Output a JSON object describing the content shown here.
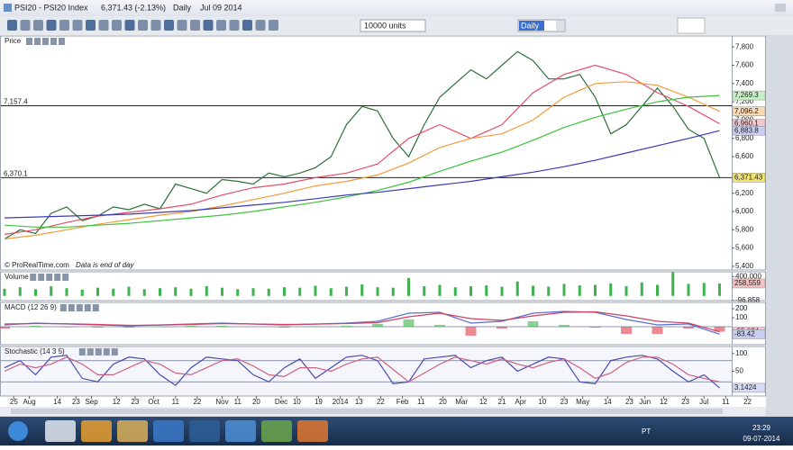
{
  "window": {
    "title": "PSI20 - PSI20 Index",
    "quote": "6,371.43 (-2.13%)",
    "period": "Daily",
    "date": "Jul 09 2014"
  },
  "toolbar": {
    "units": "10000 units",
    "interval": "Daily"
  },
  "chart_data": [
    {
      "type": "line",
      "title": "Price",
      "annotation": "© ProRealTime.com",
      "note": "Data is end of day",
      "xlim": [
        0,
        240
      ],
      "ylim": [
        5360,
        7920
      ],
      "yticks": [
        {
          "value": 5400,
          "label": "5,400"
        },
        {
          "value": 5600,
          "label": "5,600"
        },
        {
          "value": 5800,
          "label": "5,800"
        },
        {
          "value": 6000,
          "label": "6,000"
        },
        {
          "value": 6200,
          "label": "6,200"
        },
        {
          "value": 6600,
          "label": "6,600"
        },
        {
          "value": 6800,
          "label": "6,800"
        },
        {
          "value": 7000,
          "label": "7,000"
        },
        {
          "value": 7200,
          "label": "7,200"
        },
        {
          "value": 7400,
          "label": "7,400"
        },
        {
          "value": 7600,
          "label": "7,600"
        },
        {
          "value": 7800,
          "label": "7,800"
        }
      ],
      "levels": [
        {
          "value": 7157.4,
          "label": "7,157.4"
        },
        {
          "value": 6370.1,
          "label": "6,370.1"
        }
      ],
      "series": [
        {
          "color": "#2f6f3a",
          "badge": "#f2e36b",
          "x": [
            0,
            5,
            10,
            15,
            20,
            25,
            30,
            35,
            40,
            45,
            50,
            55,
            60,
            65,
            70,
            75,
            80,
            85,
            90,
            95,
            100,
            105,
            110,
            115,
            120,
            125,
            130,
            135,
            140,
            145,
            150,
            155,
            160,
            165,
            170,
            175,
            180,
            185,
            190,
            195,
            200,
            205,
            210,
            215,
            220,
            225,
            230
          ],
          "values": [
            5700,
            5800,
            5760,
            5980,
            6050,
            5900,
            5950,
            6050,
            6020,
            6080,
            6030,
            6300,
            6250,
            6200,
            6350,
            6330,
            6300,
            6420,
            6380,
            6420,
            6480,
            6600,
            6950,
            7150,
            7100,
            6800,
            6600,
            6950,
            7250,
            7400,
            7550,
            7450,
            7600,
            7750,
            7650,
            7450,
            7450,
            7500,
            7250,
            6850,
            6950,
            7150,
            7350,
            7150,
            6900,
            6800,
            6371.43
          ],
          "last_label": "6,371.43"
        },
        {
          "color": "#e0506a",
          "badge": "#f6c6cf",
          "x": [
            0,
            10,
            20,
            30,
            40,
            50,
            60,
            70,
            80,
            90,
            100,
            110,
            120,
            130,
            140,
            150,
            160,
            170,
            180,
            190,
            200,
            210,
            220,
            230
          ],
          "values": [
            5750,
            5800,
            5880,
            5950,
            5990,
            6030,
            6080,
            6180,
            6260,
            6300,
            6370,
            6420,
            6520,
            6800,
            6950,
            6800,
            6950,
            7300,
            7500,
            7600,
            7500,
            7300,
            7150,
            6960.1
          ],
          "last_label": "6,960.1"
        },
        {
          "color": "#f39a3a",
          "badge": "#fbd8b0",
          "x": [
            0,
            10,
            20,
            30,
            40,
            50,
            60,
            70,
            80,
            90,
            100,
            110,
            120,
            130,
            140,
            150,
            160,
            170,
            180,
            190,
            200,
            210,
            220,
            230
          ],
          "values": [
            5700,
            5740,
            5800,
            5860,
            5910,
            5960,
            6000,
            6060,
            6130,
            6200,
            6280,
            6330,
            6400,
            6530,
            6700,
            6800,
            6850,
            7000,
            7250,
            7400,
            7420,
            7380,
            7250,
            7096.2
          ],
          "last_label": "7,096.2"
        },
        {
          "color": "#3cc23c",
          "badge": "#c8f0c8",
          "x": [
            0,
            10,
            20,
            30,
            40,
            50,
            60,
            70,
            80,
            90,
            100,
            110,
            120,
            130,
            140,
            150,
            160,
            170,
            180,
            190,
            200,
            210,
            220,
            230
          ],
          "values": [
            5850,
            5830,
            5830,
            5850,
            5870,
            5900,
            5930,
            5960,
            6000,
            6050,
            6100,
            6160,
            6230,
            6320,
            6440,
            6550,
            6650,
            6780,
            6920,
            7030,
            7120,
            7200,
            7250,
            7269.3
          ],
          "last_label": "7,269.3"
        },
        {
          "color": "#3a3ab8",
          "badge": "#c8cdf2",
          "x": [
            0,
            10,
            20,
            30,
            40,
            50,
            60,
            70,
            80,
            90,
            100,
            110,
            120,
            130,
            140,
            150,
            160,
            170,
            180,
            190,
            200,
            210,
            220,
            230
          ],
          "values": [
            5930,
            5940,
            5950,
            5960,
            5970,
            5990,
            6010,
            6040,
            6070,
            6100,
            6140,
            6180,
            6210,
            6250,
            6290,
            6330,
            6380,
            6430,
            6490,
            6560,
            6640,
            6720,
            6800,
            6883.8
          ],
          "last_label": "6,883.8"
        }
      ]
    },
    {
      "type": "bar",
      "title": "Volume",
      "color": "#3cb44b",
      "xlim": [
        0,
        240
      ],
      "ylim": [
        -96858,
        500000
      ],
      "yticks": [
        {
          "value": 400000,
          "label": "400,000"
        },
        {
          "value": -96858,
          "label": "-96,858"
        }
      ],
      "x": [
        0,
        5,
        10,
        15,
        20,
        25,
        30,
        35,
        40,
        45,
        50,
        55,
        60,
        65,
        70,
        75,
        80,
        85,
        90,
        95,
        100,
        105,
        110,
        115,
        120,
        125,
        130,
        135,
        140,
        145,
        150,
        155,
        160,
        165,
        170,
        175,
        180,
        185,
        190,
        195,
        200,
        205,
        210,
        215,
        220,
        225,
        230
      ],
      "values": [
        150000,
        180000,
        140000,
        200000,
        160000,
        130000,
        170000,
        150000,
        190000,
        140000,
        160000,
        180000,
        150000,
        200000,
        170000,
        140000,
        160000,
        150000,
        180000,
        170000,
        210000,
        160000,
        190000,
        240000,
        180000,
        170000,
        370000,
        200000,
        230000,
        180000,
        200000,
        220000,
        190000,
        300000,
        210000,
        190000,
        250000,
        220000,
        230000,
        260000,
        200000,
        280000,
        230000,
        490000,
        250000,
        270000,
        258559
      ],
      "last_label": "258,559"
    },
    {
      "type": "macd",
      "title": "MACD (12 26 9)",
      "xlim": [
        0,
        240
      ],
      "ylim": [
        -200,
        270
      ],
      "yticks": [
        200,
        100
      ],
      "x": [
        0,
        10,
        20,
        30,
        40,
        50,
        60,
        70,
        80,
        90,
        100,
        110,
        120,
        130,
        140,
        150,
        160,
        170,
        180,
        190,
        200,
        210,
        220,
        230
      ],
      "series": [
        {
          "color": "#5a6fd0",
          "values": [
            20,
            40,
            30,
            20,
            10,
            20,
            30,
            40,
            30,
            20,
            30,
            40,
            60,
            150,
            160,
            40,
            60,
            150,
            170,
            160,
            80,
            20,
            30,
            -83.42
          ]
        },
        {
          "color": "#d04060",
          "values": [
            30,
            35,
            33,
            25,
            15,
            18,
            25,
            35,
            30,
            25,
            28,
            35,
            45,
            110,
            150,
            90,
            70,
            120,
            160,
            165,
            120,
            60,
            40,
            -55.634
          ]
        }
      ],
      "histogram": {
        "up": "#3cb44b",
        "down": "#e03a4a",
        "values": [
          -20,
          10,
          -6,
          -10,
          -10,
          4,
          10,
          10,
          0,
          -10,
          4,
          10,
          30,
          80,
          20,
          -100,
          -20,
          60,
          20,
          -10,
          -80,
          -80,
          -20,
          -56
        ]
      }
    },
    {
      "type": "line",
      "title": "Stochastic (14 3 5)",
      "xlim": [
        0,
        240
      ],
      "ylim": [
        -20,
        120
      ],
      "yticks": [
        100,
        50
      ],
      "levels": [
        80,
        20
      ],
      "xticks": [
        {
          "value": 3,
          "label": "25"
        },
        {
          "value": 8,
          "label": "Aug"
        },
        {
          "value": 17,
          "label": "14"
        },
        {
          "value": 23,
          "label": "23"
        },
        {
          "value": 28,
          "label": "Sep"
        },
        {
          "value": 36,
          "label": "12"
        },
        {
          "value": 42,
          "label": "23"
        },
        {
          "value": 48,
          "label": "Oct"
        },
        {
          "value": 55,
          "label": "11"
        },
        {
          "value": 62,
          "label": "22"
        },
        {
          "value": 70,
          "label": "Nov"
        },
        {
          "value": 75,
          "label": "11"
        },
        {
          "value": 81,
          "label": "20"
        },
        {
          "value": 89,
          "label": "Dec"
        },
        {
          "value": 94,
          "label": "10"
        },
        {
          "value": 101,
          "label": "19"
        },
        {
          "value": 108,
          "label": "2014"
        },
        {
          "value": 114,
          "label": "13"
        },
        {
          "value": 121,
          "label": "22"
        },
        {
          "value": 128,
          "label": "Feb"
        },
        {
          "value": 134,
          "label": "11"
        },
        {
          "value": 141,
          "label": "20"
        },
        {
          "value": 147,
          "label": "Mar"
        },
        {
          "value": 154,
          "label": "12"
        },
        {
          "value": 160,
          "label": "21"
        },
        {
          "value": 166,
          "label": "Apr"
        },
        {
          "value": 173,
          "label": "10"
        },
        {
          "value": 180,
          "label": "23"
        },
        {
          "value": 186,
          "label": "May"
        },
        {
          "value": 194,
          "label": "14"
        },
        {
          "value": 201,
          "label": "23"
        },
        {
          "value": 206,
          "label": "Jun"
        },
        {
          "value": 212,
          "label": "12"
        },
        {
          "value": 219,
          "label": "23"
        },
        {
          "value": 225,
          "label": "Jul"
        },
        {
          "value": 232,
          "label": "11"
        },
        {
          "value": 239,
          "label": "22"
        }
      ],
      "series": [
        {
          "color": "#4a4ab0",
          "badge": "#d8dcf4",
          "x": [
            0,
            5,
            10,
            15,
            20,
            25,
            30,
            35,
            40,
            45,
            50,
            55,
            60,
            65,
            70,
            75,
            80,
            85,
            90,
            95,
            100,
            105,
            110,
            115,
            120,
            125,
            130,
            135,
            140,
            145,
            150,
            155,
            160,
            165,
            170,
            175,
            180,
            185,
            190,
            195,
            200,
            205,
            210,
            215,
            220,
            225,
            230
          ],
          "values": [
            60,
            80,
            40,
            90,
            95,
            30,
            20,
            70,
            90,
            85,
            40,
            10,
            60,
            90,
            85,
            80,
            40,
            20,
            60,
            85,
            30,
            60,
            90,
            95,
            80,
            15,
            20,
            85,
            90,
            95,
            60,
            80,
            90,
            50,
            70,
            90,
            85,
            20,
            15,
            80,
            90,
            95,
            85,
            50,
            20,
            40,
            3.1424
          ]
        },
        {
          "color": "#d06080",
          "x": [
            0,
            5,
            10,
            15,
            20,
            25,
            30,
            35,
            40,
            45,
            50,
            55,
            60,
            65,
            70,
            75,
            80,
            85,
            90,
            95,
            100,
            105,
            110,
            115,
            120,
            125,
            130,
            135,
            140,
            145,
            150,
            155,
            160,
            165,
            170,
            175,
            180,
            185,
            190,
            195,
            200,
            205,
            210,
            215,
            220,
            225,
            230
          ],
          "values": [
            50,
            70,
            60,
            70,
            90,
            70,
            40,
            40,
            60,
            80,
            70,
            45,
            40,
            60,
            80,
            85,
            65,
            40,
            35,
            60,
            60,
            50,
            70,
            85,
            90,
            55,
            20,
            45,
            70,
            90,
            80,
            70,
            85,
            70,
            60,
            75,
            85,
            60,
            30,
            45,
            75,
            90,
            90,
            70,
            40,
            30,
            20
          ]
        }
      ]
    }
  ],
  "taskbar": {
    "language": "PT",
    "time": "23:29",
    "date": "09-07-2014"
  }
}
